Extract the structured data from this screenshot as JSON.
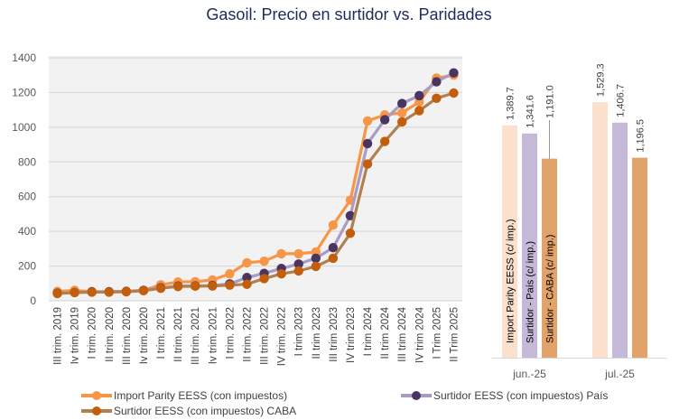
{
  "title": "Gasoil: Precio en surtidor vs. Paridades",
  "colors": {
    "import_parity": "#f79646",
    "pais_line": "#a99cc4",
    "pais_marker": "#4a3560",
    "caba_line": "#b08050",
    "caba_marker": "#c25e0c",
    "plot_bg": "#f2f2f2",
    "grid": "#d9d9d9",
    "bar_import": "#fbe1cd",
    "bar_pais": "#c5b8d8",
    "bar_caba": "#e2a36b"
  },
  "chart_data": [
    {
      "type": "line",
      "title": "Gasoil: Precio en surtidor vs. Paridades",
      "xlabel": "",
      "ylabel": "",
      "ylim": [
        0,
        1400
      ],
      "yticks": [
        "0",
        "200",
        "400",
        "600",
        "800",
        "1000",
        "1200",
        "1400"
      ],
      "grid": true,
      "legend_position": "bottom",
      "categories": [
        "III trim. 2019",
        "Iv trim. 2019",
        "I trim. 2020",
        "II trim. 2020",
        "III trim. 2020",
        "Iv trim. 2020",
        "I trim. 2021",
        "II trim. 2021",
        "III trim. 2021",
        "Iv trim. 2021",
        "I trim. 2022",
        "II trim. 2022",
        "III trim. 2022",
        "IV trim. 2022",
        "I trim 2023",
        "II trim 2023",
        "III trim 2023",
        "IV trim 2023",
        "I trim 2024",
        "II trim 2024",
        "III trim 2024",
        "IV trim 2024",
        "I Trim 2025",
        "II Trim 2025"
      ],
      "series": [
        {
          "name": "Import Parity EESS (con impuestos)",
          "key": "import",
          "values": [
            54,
            60,
            52,
            52,
            55,
            60,
            92,
            108,
            110,
            120,
            155,
            219,
            228,
            271,
            271,
            281,
            436,
            580,
            1036,
            1071,
            1083,
            1145,
            1283,
            1300
          ]
        },
        {
          "name": "Surtidor EESS (con impuestos) País",
          "key": "pais",
          "values": [
            44,
            48,
            52,
            52,
            54,
            60,
            75,
            85,
            86,
            88,
            97,
            134,
            158,
            186,
            212,
            245,
            306,
            490,
            906,
            1043,
            1137,
            1182,
            1262,
            1313
          ]
        },
        {
          "name": "Surtidor EESS (con impuestos) CABA",
          "key": "caba",
          "values": [
            42,
            47,
            50,
            50,
            52,
            58,
            72,
            82,
            84,
            85,
            90,
            95,
            128,
            155,
            172,
            198,
            245,
            389,
            788,
            918,
            1031,
            1095,
            1167,
            1197
          ]
        }
      ]
    },
    {
      "type": "bar",
      "categories": [
        "jun.-25",
        "jul.-25"
      ],
      "grid": false,
      "series": [
        {
          "name": "Import Parity EESS  (c/ imp.)",
          "key": "import",
          "values": [
            1389.7,
            1529.3
          ],
          "labels": [
            "1,389.7",
            "1,529.3"
          ]
        },
        {
          "name": "Surtidor - País  (c/ imp.)",
          "key": "pais",
          "values": [
            1341.6,
            1406.7
          ],
          "labels": [
            "1,341.6",
            "1,406.7"
          ]
        },
        {
          "name": "Surtidor - CABA (c/ imp.)",
          "key": "caba",
          "values": [
            1191.0,
            1196.5
          ],
          "labels": [
            "1,191.0",
            "1,196.5"
          ]
        }
      ]
    }
  ]
}
